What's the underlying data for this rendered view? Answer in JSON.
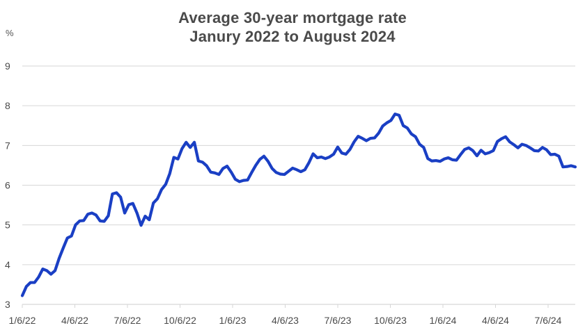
{
  "chart_data": {
    "type": "line",
    "title": "Average 30-year mortgage rate",
    "subtitle": "Janury 2022 to August 2024",
    "ylabel": "%",
    "xlabel": "",
    "ylim": [
      3,
      9
    ],
    "yticks": [
      3,
      4,
      5,
      6,
      7,
      8,
      9
    ],
    "xticks": [
      "1/6/22",
      "4/6/22",
      "7/6/22",
      "10/6/22",
      "1/6/23",
      "4/6/23",
      "7/6/23",
      "10/6/23",
      "1/6/24",
      "4/6/24",
      "7/6/24"
    ],
    "grid": true,
    "line_color": "#1a3fc4",
    "grid_color": "#d6d6d6",
    "series": [
      {
        "values": [
          3.22,
          3.45,
          3.55,
          3.55,
          3.69,
          3.89,
          3.85,
          3.76,
          3.85,
          4.16,
          4.42,
          4.67,
          4.72,
          5.0,
          5.1,
          5.11,
          5.27,
          5.3,
          5.25,
          5.1,
          5.09,
          5.23,
          5.78,
          5.81,
          5.7,
          5.3,
          5.51,
          5.54,
          5.3,
          4.99,
          5.22,
          5.13,
          5.55,
          5.66,
          5.89,
          6.02,
          6.29,
          6.7,
          6.66,
          6.92,
          7.08,
          6.95,
          7.08,
          6.61,
          6.58,
          6.49,
          6.33,
          6.31,
          6.27,
          6.42,
          6.48,
          6.33,
          6.15,
          6.09,
          6.12,
          6.13,
          6.32,
          6.5,
          6.65,
          6.73,
          6.6,
          6.42,
          6.32,
          6.28,
          6.27,
          6.35,
          6.43,
          6.39,
          6.34,
          6.39,
          6.57,
          6.79,
          6.69,
          6.71,
          6.67,
          6.71,
          6.78,
          6.96,
          6.81,
          6.78,
          6.9,
          7.09,
          7.23,
          7.18,
          7.12,
          7.18,
          7.19,
          7.31,
          7.49,
          7.57,
          7.63,
          7.79,
          7.76,
          7.5,
          7.44,
          7.29,
          7.22,
          7.03,
          6.95,
          6.67,
          6.61,
          6.62,
          6.6,
          6.66,
          6.69,
          6.64,
          6.63,
          6.77,
          6.9,
          6.94,
          6.87,
          6.74,
          6.88,
          6.79,
          6.82,
          6.87,
          7.1,
          7.17,
          7.22,
          7.09,
          7.02,
          6.94,
          7.03,
          7.0,
          6.94,
          6.87,
          6.86,
          6.95,
          6.89,
          6.77,
          6.78,
          6.73,
          6.46,
          6.47,
          6.49,
          6.46
        ]
      }
    ]
  }
}
